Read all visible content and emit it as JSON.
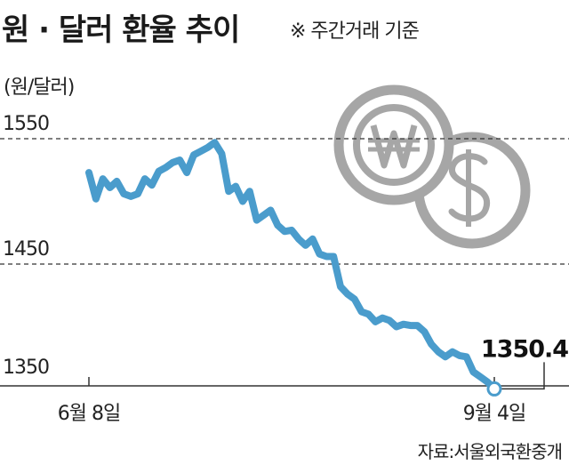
{
  "header": {
    "title": "원 · 달러 환율 추이",
    "subtitle": "※ 주간거래 기준"
  },
  "unit_label": "(원/달러)",
  "source": "자료:서울외국환중개",
  "chart_data": {
    "type": "line",
    "title": "원 · 달러 환율 추이",
    "ylabel": "(원/달러)",
    "ylim": [
      1340,
      1600
    ],
    "yticks": [
      1550,
      1450,
      1350
    ],
    "xtick_labels": [
      "6월 8일",
      "9월 4일"
    ],
    "end_label": "1350.4",
    "grid": "dashed horizontal at 1550 and 1450",
    "colors": {
      "line": "#4a9ccc",
      "grid": "#333333",
      "coins": "#a6a6a6"
    },
    "icons": [
      "won-coin-icon",
      "dollar-coin-icon"
    ],
    "series": [
      {
        "values": [
          1523,
          1502,
          1518,
          1511,
          1516,
          1506,
          1504,
          1506,
          1518,
          1513,
          1524,
          1527,
          1531,
          1533,
          1523,
          1537,
          1540,
          1543,
          1547,
          1538,
          1508,
          1512,
          1500,
          1508,
          1485,
          1489,
          1493,
          1481,
          1476,
          1477,
          1470,
          1465,
          1470,
          1458,
          1456,
          1456,
          1432,
          1426,
          1422,
          1412,
          1410,
          1404,
          1407,
          1405,
          1400,
          1402,
          1401,
          1401,
          1396,
          1386,
          1380,
          1376,
          1380,
          1377,
          1376,
          1364,
          1360,
          1356,
          1350.4
        ]
      }
    ]
  }
}
